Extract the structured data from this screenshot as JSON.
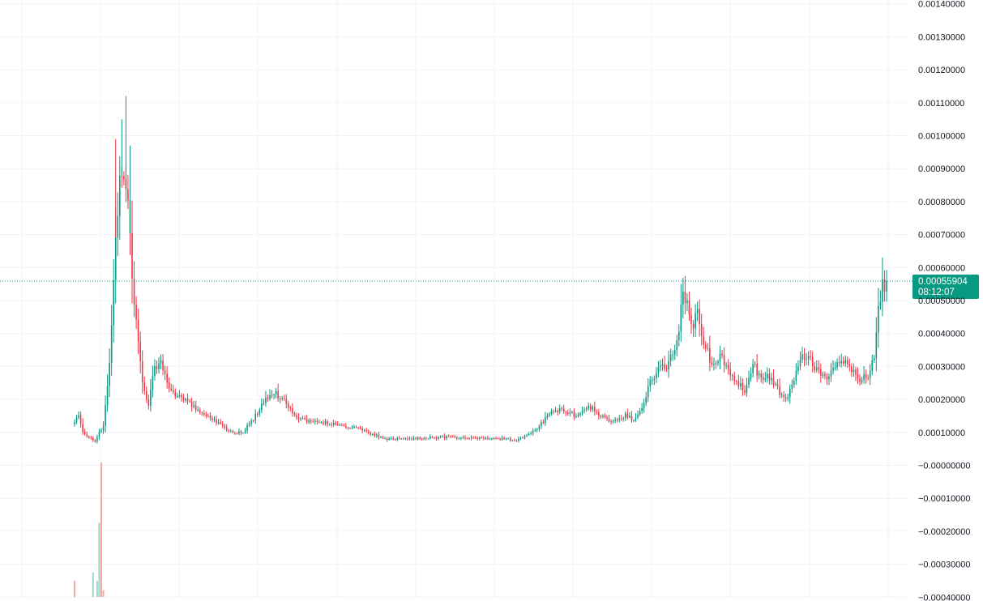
{
  "chart_data": {
    "type": "candlestick",
    "y_axis": {
      "position": "right",
      "tick_labels": [
        "0.00140000",
        "0.00130000",
        "0.00120000",
        "0.00110000",
        "0.00100000",
        "0.00090000",
        "0.00080000",
        "0.00070000",
        "0.00060000",
        "0.00050000",
        "0.00040000",
        "0.00030000",
        "0.00020000",
        "0.00010000",
        "−0.00000000",
        "−0.00010000",
        "−0.00020000",
        "−0.00030000",
        "−0.00040000"
      ],
      "ylim": [
        -0.0004,
        0.00141
      ]
    },
    "grid": true,
    "last_price": {
      "value": 0.00055904,
      "label": "0.00055904",
      "countdown": "08:12:07",
      "color": "#089981"
    },
    "colors": {
      "up": "#089981",
      "down": "#f23645",
      "up_volume": "#9fd4cc",
      "down_volume": "#f7a9a0",
      "grid": "#f0f3fa",
      "text": "#131722"
    },
    "price_keyframes": [
      [
        0,
        0.00013
      ],
      [
        2,
        0.00015
      ],
      [
        4,
        0.0001
      ],
      [
        7,
        8.5e-05
      ],
      [
        10,
        7.5e-05
      ],
      [
        14,
        0.00012
      ],
      [
        17,
        0.0003
      ],
      [
        20,
        0.0007
      ],
      [
        22,
        0.00087
      ],
      [
        24,
        0.00086
      ],
      [
        26,
        0.0008
      ],
      [
        28,
        0.00056
      ],
      [
        31,
        0.00038
      ],
      [
        33,
        0.00026
      ],
      [
        36,
        0.00018
      ],
      [
        39,
        0.0003
      ],
      [
        42,
        0.00031
      ],
      [
        46,
        0.00023
      ],
      [
        52,
        0.0002
      ],
      [
        58,
        0.00018
      ],
      [
        64,
        0.00015
      ],
      [
        70,
        0.00013
      ],
      [
        76,
        0.0001
      ],
      [
        82,
        0.0001
      ],
      [
        88,
        0.00015
      ],
      [
        93,
        0.0002
      ],
      [
        97,
        0.00022
      ],
      [
        102,
        0.0002
      ],
      [
        107,
        0.00015
      ],
      [
        115,
        0.00013
      ],
      [
        122,
        0.00013
      ],
      [
        130,
        0.00012
      ],
      [
        138,
        0.00011
      ],
      [
        145,
        9.5e-05
      ],
      [
        150,
        8e-05
      ],
      [
        160,
        8e-05
      ],
      [
        170,
        8.3e-05
      ],
      [
        180,
        8.5e-05
      ],
      [
        190,
        8.2e-05
      ],
      [
        200,
        8.2e-05
      ],
      [
        210,
        8e-05
      ],
      [
        215,
        7.5e-05
      ],
      [
        220,
        9e-05
      ],
      [
        226,
        0.00012
      ],
      [
        232,
        0.00016
      ],
      [
        238,
        0.00017
      ],
      [
        244,
        0.00015
      ],
      [
        250,
        0.00018
      ],
      [
        256,
        0.00015
      ],
      [
        262,
        0.00013
      ],
      [
        268,
        0.00015
      ],
      [
        272,
        0.00014
      ],
      [
        276,
        0.00018
      ],
      [
        280,
        0.00025
      ],
      [
        284,
        0.0003
      ],
      [
        288,
        0.0003
      ],
      [
        292,
        0.00035
      ],
      [
        294,
        0.00042
      ],
      [
        296,
        0.00053
      ],
      [
        298,
        0.0005
      ],
      [
        300,
        0.00042
      ],
      [
        303,
        0.00046
      ],
      [
        306,
        0.00038
      ],
      [
        310,
        0.0003
      ],
      [
        314,
        0.00033
      ],
      [
        318,
        0.00029
      ],
      [
        322,
        0.00025
      ],
      [
        326,
        0.00023
      ],
      [
        330,
        0.00031
      ],
      [
        334,
        0.00026
      ],
      [
        338,
        0.00027
      ],
      [
        342,
        0.00023
      ],
      [
        346,
        0.0002
      ],
      [
        350,
        0.00026
      ],
      [
        354,
        0.00034
      ],
      [
        358,
        0.00032
      ],
      [
        362,
        0.00028
      ],
      [
        366,
        0.00026
      ],
      [
        370,
        0.0003
      ],
      [
        374,
        0.00032
      ],
      [
        378,
        0.00029
      ],
      [
        382,
        0.00026
      ],
      [
        386,
        0.00027
      ],
      [
        389,
        0.00034
      ],
      [
        391,
        0.00048
      ],
      [
        393,
        0.00054
      ],
      [
        395,
        0.000559
      ]
    ],
    "volume_spikes": [
      {
        "index": 0,
        "value": 0.12,
        "direction": "down"
      },
      {
        "index": 9,
        "value": 0.18,
        "direction": "up"
      },
      {
        "index": 11,
        "value": 0.12,
        "direction": "up"
      },
      {
        "index": 12,
        "value": 0.55,
        "direction": "up"
      },
      {
        "index": 13,
        "value": 1.0,
        "direction": "down"
      },
      {
        "index": 14,
        "value": 0.05,
        "direction": "down"
      }
    ]
  }
}
